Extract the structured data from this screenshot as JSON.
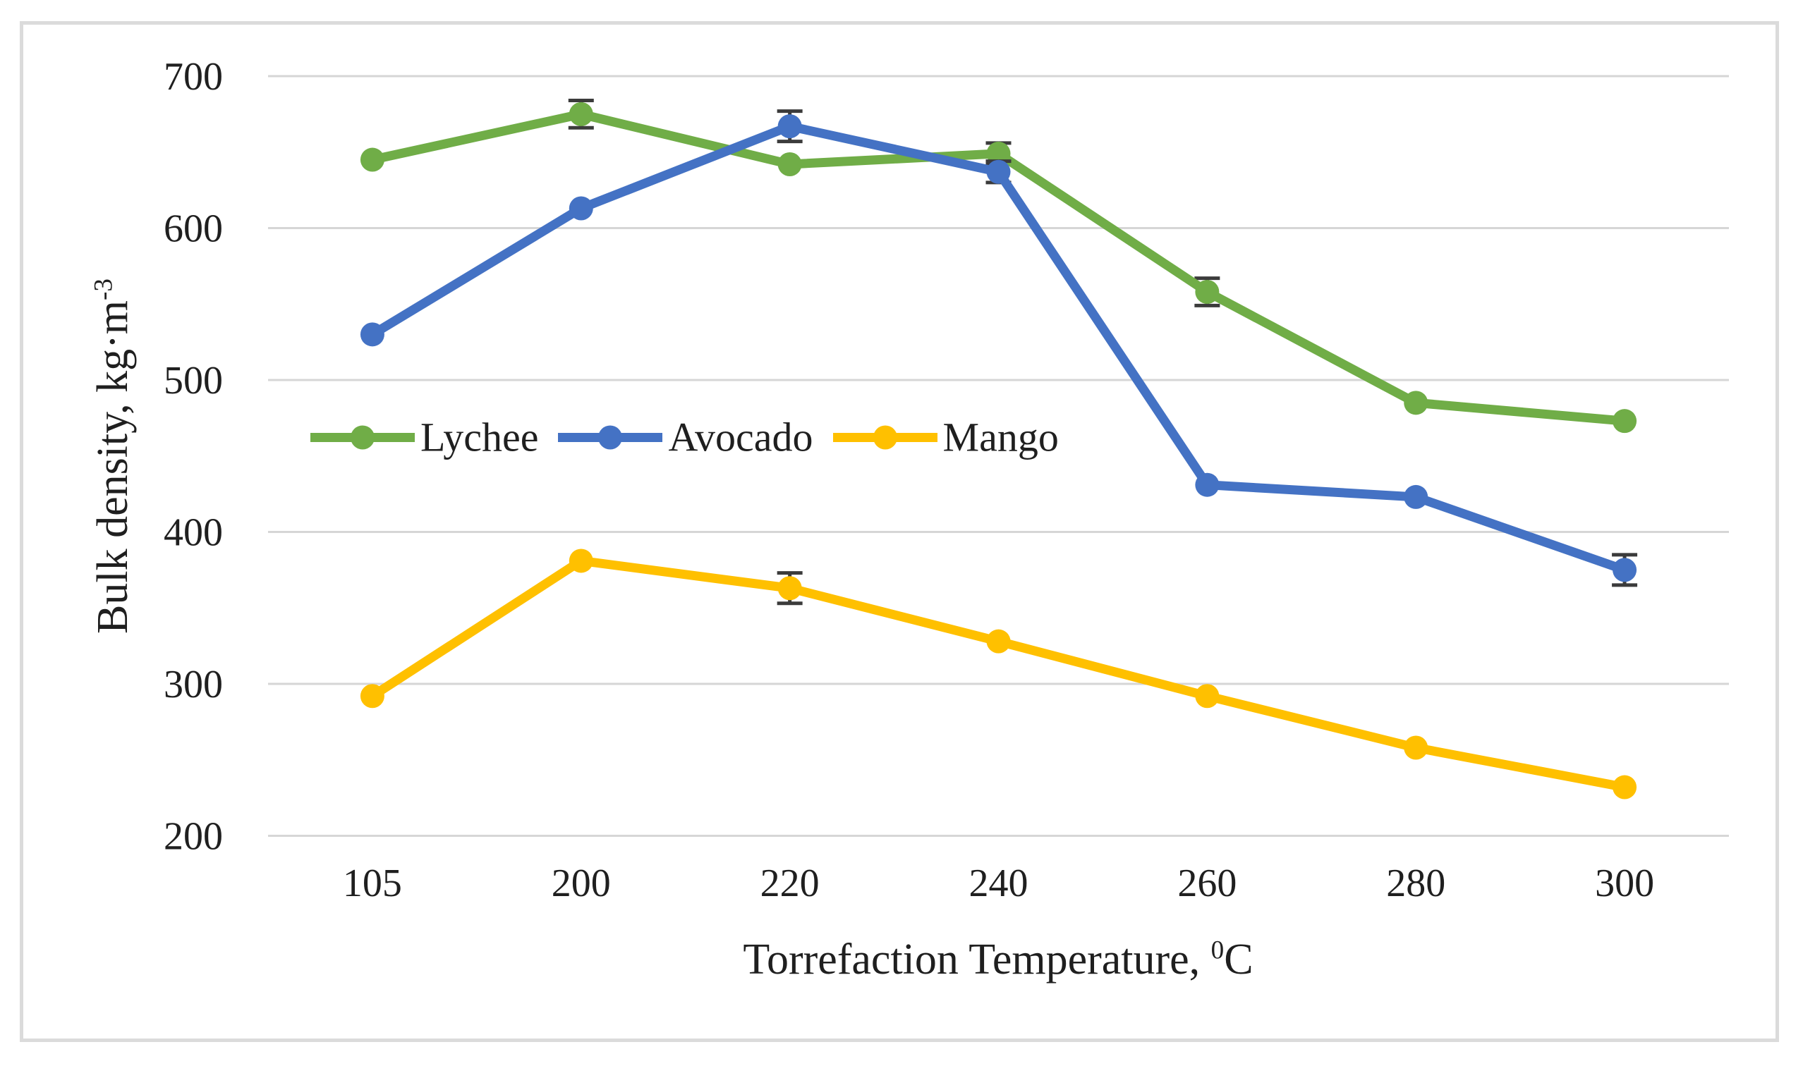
{
  "figure": {
    "background": "#FFFFFF",
    "border_color": "#DBDBDB",
    "gridline_color": "#D6D6D6",
    "text_color": "#1F1F1F",
    "error_bar_color": "#3B3B3B"
  },
  "chart_data": {
    "type": "line",
    "title": "",
    "xlabel": "Torrefaction Temperature, ⁰C",
    "ylabel": "Bulk density, kg·m⁻³",
    "xlabel_parts": {
      "prefix": "Torrefaction Temperature, ",
      "sup": "0",
      "suffix": "C"
    },
    "ylabel_parts": {
      "prefix": "Bulk density, kg·m",
      "sup": "-3"
    },
    "categories": [
      "105",
      "200",
      "220",
      "240",
      "260",
      "280",
      "300"
    ],
    "y_ticks": [
      700,
      600,
      500,
      400,
      300,
      200
    ],
    "ylim": [
      200,
      700
    ],
    "grid": "horizontal",
    "legend_position": "inside-left-middle",
    "series": [
      {
        "name": "Lychee",
        "color": "#70AD47",
        "values": [
          645,
          675,
          642,
          649,
          558,
          485,
          473
        ],
        "err": [
          0,
          9,
          0,
          7,
          9,
          0,
          0
        ]
      },
      {
        "name": "Avocado",
        "color": "#4472C4",
        "values": [
          530,
          613,
          667,
          637,
          431,
          423,
          375
        ],
        "err": [
          0,
          0,
          10,
          7,
          0,
          0,
          10
        ]
      },
      {
        "name": "Mango",
        "color": "#FFC000",
        "values": [
          292,
          381,
          363,
          328,
          292,
          258,
          232
        ],
        "err": [
          0,
          0,
          10,
          0,
          0,
          0,
          0
        ]
      }
    ]
  }
}
